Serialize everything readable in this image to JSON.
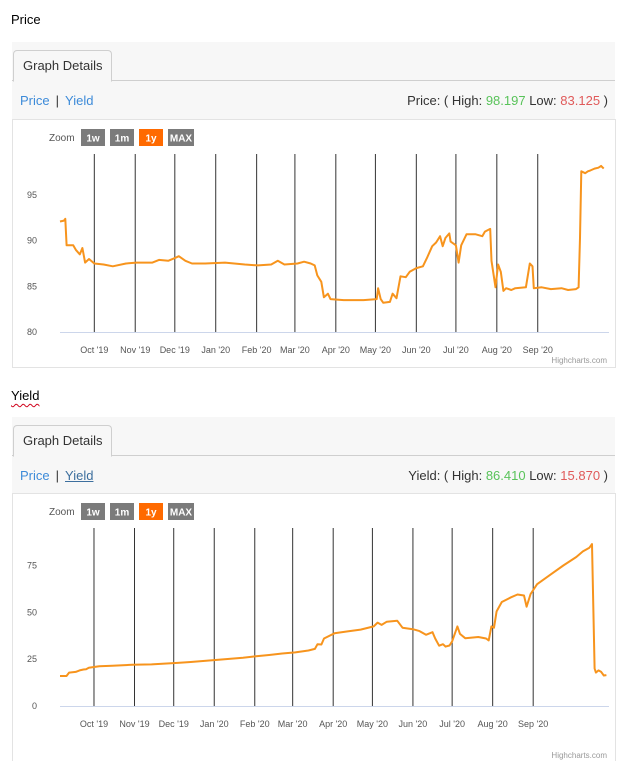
{
  "sections": {
    "price_heading": "Price",
    "yield_heading": "Yield"
  },
  "common": {
    "tab_label": "Graph Details",
    "price_link": "Price",
    "yield_link": "Yield",
    "separator": "|",
    "zoom_label": "Zoom",
    "zoom_buttons": [
      "1w",
      "1m",
      "1y",
      "MAX"
    ],
    "zoom_active": "1y",
    "credit": "Highcharts.com",
    "colors": {
      "line": "#f7941d",
      "active_zoom": "#ff6a00",
      "inactive_zoom": "#7b7b7b",
      "high": "#59c35a",
      "low": "#e05a5a",
      "link": "#3d8bd9"
    }
  },
  "price_panel": {
    "summary_prefix": "Price: ( High: ",
    "high_value": "98.197",
    "low_prefix": " Low: ",
    "low_value": "83.125",
    "summary_suffix": " )"
  },
  "yield_panel": {
    "summary_prefix": "Yield: ( High: ",
    "high_value": "86.410",
    "low_prefix": " Low: ",
    "low_value": "15.870",
    "summary_suffix": " )"
  },
  "chart_data": [
    {
      "type": "line",
      "series": [
        {
          "values": [
            [
              0,
              92.1
            ],
            [
              3,
              92.2
            ],
            [
              4,
              92.4
            ],
            [
              5,
              89.5
            ],
            [
              10,
              89.5
            ],
            [
              12,
              89
            ],
            [
              15,
              88.5
            ],
            [
              17,
              89.2
            ],
            [
              19,
              87.6
            ],
            [
              22,
              88
            ],
            [
              26,
              87.5
            ],
            [
              33,
              87.4
            ],
            [
              40,
              87.2
            ],
            [
              50,
              87.5
            ],
            [
              58,
              87.6
            ],
            [
              70,
              87.6
            ],
            [
              75,
              87.9
            ],
            [
              82,
              87.8
            ],
            [
              87,
              88.1
            ],
            [
              90,
              88.3
            ],
            [
              95,
              87.8
            ],
            [
              100,
              87.5
            ],
            [
              110,
              87.5
            ],
            [
              125,
              87.6
            ],
            [
              140,
              87.4
            ],
            [
              150,
              87.3
            ],
            [
              160,
              87.4
            ],
            [
              165,
              87.8
            ],
            [
              170,
              87.4
            ],
            [
              180,
              87.5
            ],
            [
              185,
              87.7
            ],
            [
              190,
              87.5
            ],
            [
              193,
              87.3
            ],
            [
              195,
              86.2
            ],
            [
              198,
              85.5
            ],
            [
              200,
              83.8
            ],
            [
              203,
              84.2
            ],
            [
              205,
              83.6
            ],
            [
              215,
              83.5
            ],
            [
              230,
              83.5
            ],
            [
              240,
              83.6
            ],
            [
              241,
              84.8
            ],
            [
              243,
              83.6
            ],
            [
              245,
              83.2
            ],
            [
              250,
              83.3
            ],
            [
              252,
              84.2
            ],
            [
              255,
              83.7
            ],
            [
              258,
              86.1
            ],
            [
              262,
              86
            ],
            [
              265,
              86.6
            ],
            [
              270,
              87
            ],
            [
              275,
              87.2
            ],
            [
              278,
              88.1
            ],
            [
              282,
              89.4
            ],
            [
              285,
              89.8
            ],
            [
              288,
              90.5
            ],
            [
              290,
              89.4
            ],
            [
              292,
              90.3
            ],
            [
              295,
              90.8
            ],
            [
              296,
              89.9
            ],
            [
              300,
              89.5
            ],
            [
              302,
              87.6
            ],
            [
              304,
              89.5
            ],
            [
              308,
              90.7
            ],
            [
              315,
              90.7
            ],
            [
              320,
              90.5
            ],
            [
              322,
              91
            ],
            [
              326,
              91.3
            ],
            [
              327,
              87.8
            ],
            [
              330,
              84.9
            ],
            [
              332,
              87.4
            ],
            [
              334,
              86.6
            ],
            [
              336,
              84.5
            ],
            [
              338,
              84.8
            ],
            [
              342,
              84.6
            ],
            [
              345,
              84.8
            ],
            [
              353,
              84.9
            ],
            [
              356,
              87.5
            ],
            [
              358,
              87.2
            ],
            [
              359,
              84.8
            ],
            [
              365,
              84.9
            ],
            [
              372,
              84.7
            ],
            [
              380,
              84.8
            ],
            [
              385,
              84.6
            ],
            [
              391,
              84.7
            ],
            [
              393,
              84.9
            ],
            [
              394,
              90.3
            ],
            [
              395,
              97.6
            ],
            [
              398,
              97.4
            ],
            [
              400,
              97.6
            ],
            [
              402,
              97.7
            ],
            [
              405,
              97.9
            ],
            [
              408,
              98
            ],
            [
              410,
              98.2
            ],
            [
              412,
              97.9
            ]
          ]
        }
      ],
      "x_tick_labels": [
        "Oct '19",
        "Nov '19",
        "Dec '19",
        "Jan '20",
        "Feb '20",
        "Mar '20",
        "Apr '20",
        "May '20",
        "Jun '20",
        "Jul '20",
        "Aug '20",
        "Sep '20"
      ],
      "x_ticks": [
        26,
        57,
        87,
        118,
        149,
        178,
        209,
        239,
        270,
        300,
        331,
        362
      ],
      "y_ticks": [
        80,
        85,
        90,
        95
      ],
      "ylim": [
        80,
        99.5
      ],
      "xlim": [
        0,
        416
      ],
      "grid": "vertical"
    },
    {
      "type": "line",
      "series": [
        {
          "values": [
            [
              0,
              16
            ],
            [
              5,
              16
            ],
            [
              7,
              17.8
            ],
            [
              12,
              18.2
            ],
            [
              15,
              19
            ],
            [
              18,
              19.5
            ],
            [
              20,
              19.6
            ],
            [
              22,
              20.4
            ],
            [
              30,
              21.2
            ],
            [
              40,
              21.5
            ],
            [
              55,
              22
            ],
            [
              70,
              22.2
            ],
            [
              90,
              23
            ],
            [
              100,
              23.5
            ],
            [
              120,
              24.6
            ],
            [
              140,
              25.8
            ],
            [
              150,
              26.6
            ],
            [
              160,
              27.2
            ],
            [
              170,
              28
            ],
            [
              180,
              28.6
            ],
            [
              190,
              29.6
            ],
            [
              195,
              30.5
            ],
            [
              197,
              33
            ],
            [
              200,
              32.8
            ],
            [
              202,
              36
            ],
            [
              210,
              38.8
            ],
            [
              220,
              39.8
            ],
            [
              230,
              40.8
            ],
            [
              240,
              42.5
            ],
            [
              243,
              44.5
            ],
            [
              246,
              43.3
            ],
            [
              250,
              45
            ],
            [
              258,
              45.5
            ],
            [
              262,
              41.8
            ],
            [
              270,
              41
            ],
            [
              275,
              40
            ],
            [
              280,
              38
            ],
            [
              285,
              39.4
            ],
            [
              287,
              36
            ],
            [
              290,
              32.2
            ],
            [
              293,
              33
            ],
            [
              295,
              31.7
            ],
            [
              298,
              32.3
            ],
            [
              300,
              34.5
            ],
            [
              304,
              42.5
            ],
            [
              306,
              38.5
            ],
            [
              310,
              36.2
            ],
            [
              320,
              36.8
            ],
            [
              326,
              36
            ],
            [
              328,
              35
            ],
            [
              330,
              42.5
            ],
            [
              332,
              41.8
            ],
            [
              334,
              50.5
            ],
            [
              338,
              55.5
            ],
            [
              345,
              58
            ],
            [
              350,
              59.5
            ],
            [
              355,
              59
            ],
            [
              357,
              53
            ],
            [
              360,
              59.8
            ],
            [
              365,
              65
            ],
            [
              375,
              70
            ],
            [
              385,
              75
            ],
            [
              395,
              79.5
            ],
            [
              400,
              82.5
            ],
            [
              405,
              84.5
            ],
            [
              407,
              86.4
            ],
            [
              409,
              20
            ],
            [
              410,
              17.8
            ],
            [
              412,
              19
            ],
            [
              414,
              18.2
            ],
            [
              416,
              16.3
            ],
            [
              418,
              16.5
            ]
          ]
        }
      ],
      "x_tick_labels": [
        "Oct '19",
        "Nov '19",
        "Dec '19",
        "Jan '20",
        "Feb '20",
        "Mar '20",
        "Apr '20",
        "May '20",
        "Jun '20",
        "Jul '20",
        "Aug '20",
        "Sep '20"
      ],
      "x_ticks": [
        26,
        57,
        87,
        118,
        149,
        178,
        209,
        239,
        270,
        300,
        331,
        362
      ],
      "y_ticks": [
        0,
        25,
        50,
        75
      ],
      "ylim": [
        0,
        95
      ],
      "xlim": [
        0,
        420
      ],
      "grid": "vertical"
    }
  ]
}
